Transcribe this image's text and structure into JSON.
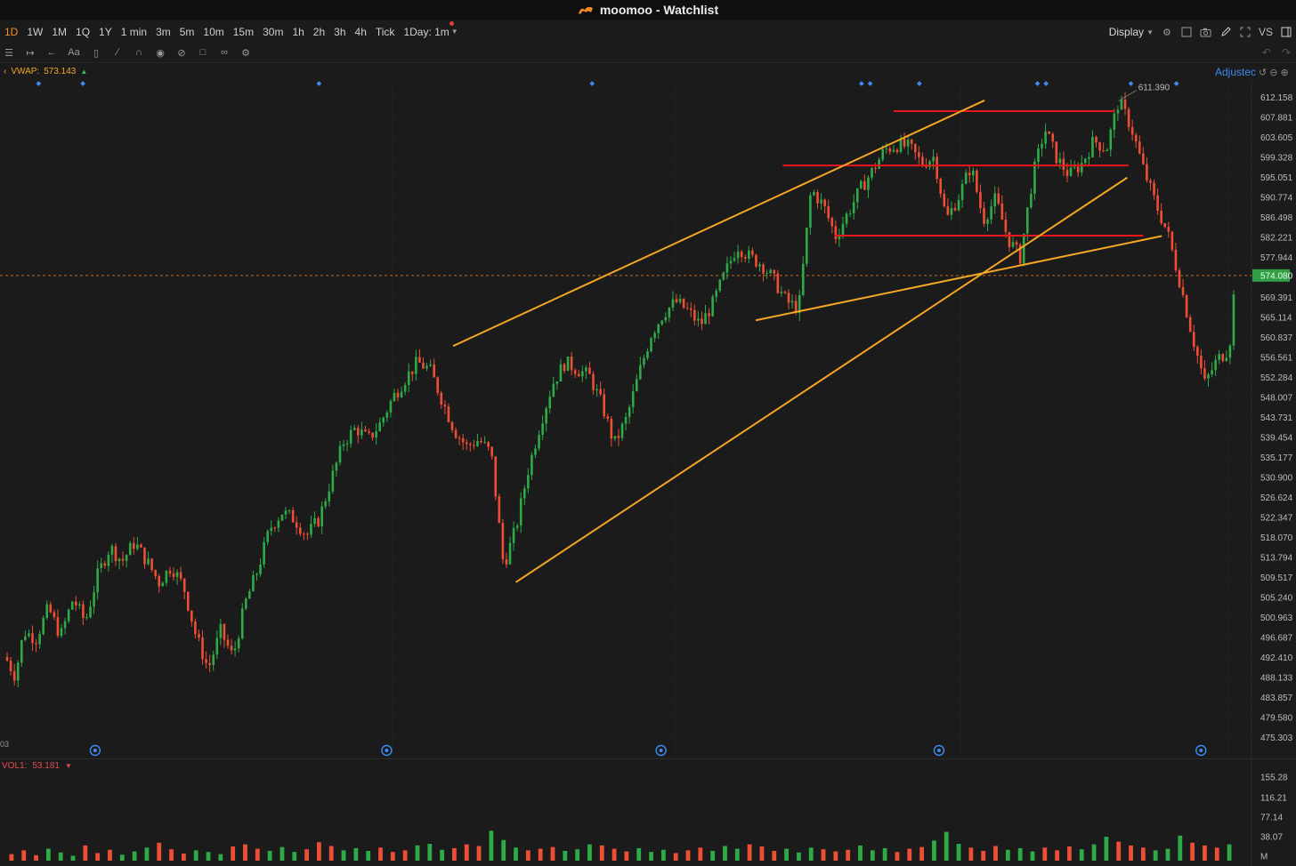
{
  "app": {
    "title": "moomoo - Watchlist"
  },
  "toolbar": {
    "timeframes": [
      "1D",
      "1W",
      "1M",
      "1Q",
      "1Y",
      "1 min",
      "3m",
      "5m",
      "10m",
      "15m",
      "30m",
      "1h",
      "2h",
      "3h",
      "4h",
      "Tick"
    ],
    "active_timeframe": "1D",
    "day_selector": "1Day: 1m",
    "display_label": "Display",
    "vs_label": "VS"
  },
  "indicators": {
    "vwap_label": "VWAP:",
    "vwap_value": "573.143",
    "vol_label": "VOL1:",
    "vol_value": "53.181",
    "adjusted_label": "Adjustec",
    "date_stub": "03",
    "tool_text": "Aa"
  },
  "icons": {
    "title_logo": "moomoo-logo-icon",
    "camera": "camera-icon",
    "pencil": "pencil-icon",
    "expand": "expand-icon",
    "settings": "gear-icon"
  },
  "colors": {
    "up": "#2eaa47",
    "down": "#ee4e34",
    "trendline": "#f5a623",
    "level": "#e8161d",
    "price_highlight": "#2f9e44",
    "accent": "#f28c28",
    "background": "#1b1b1c"
  },
  "chart_data": {
    "type": "candlestick",
    "price_axis_ticks": [
      "612.158",
      "607.881",
      "603.605",
      "599.328",
      "595.051",
      "590.774",
      "586.498",
      "582.221",
      "577.944",
      "569.391",
      "565.114",
      "560.837",
      "556.561",
      "552.284",
      "548.007",
      "543.731",
      "539.454",
      "535.177",
      "530.900",
      "526.624",
      "522.347",
      "518.070",
      "513.794",
      "509.517",
      "505.240",
      "500.963",
      "496.687",
      "492.410",
      "488.133",
      "483.857",
      "479.580",
      "475.303"
    ],
    "ylim": [
      475.303,
      612.158
    ],
    "current_price": "574.080",
    "current_price_value": 574.08,
    "high_annotation": "611.390",
    "high_value": 611.39,
    "volume_axis_ticks": [
      "155.28",
      "116.21",
      "77.14",
      "38.07",
      "M"
    ],
    "volume_ylim": [
      0,
      155.28
    ],
    "price_path": [
      {
        "x": 0.0,
        "y": 492.5
      },
      {
        "x": 0.8,
        "y": 488.5
      },
      {
        "x": 1.5,
        "y": 498.0
      },
      {
        "x": 2.5,
        "y": 496.5
      },
      {
        "x": 3.5,
        "y": 503.0
      },
      {
        "x": 4.5,
        "y": 497.0
      },
      {
        "x": 5.5,
        "y": 505.0
      },
      {
        "x": 6.5,
        "y": 500.0
      },
      {
        "x": 7.5,
        "y": 510.0
      },
      {
        "x": 8.5,
        "y": 516.0
      },
      {
        "x": 9.5,
        "y": 513.0
      },
      {
        "x": 10.5,
        "y": 517.0
      },
      {
        "x": 11.5,
        "y": 513.0
      },
      {
        "x": 12.5,
        "y": 508.5
      },
      {
        "x": 13.5,
        "y": 512.0
      },
      {
        "x": 14.5,
        "y": 507.5
      },
      {
        "x": 15.5,
        "y": 497.0
      },
      {
        "x": 16.5,
        "y": 490.0
      },
      {
        "x": 17.5,
        "y": 498.0
      },
      {
        "x": 18.5,
        "y": 492.5
      },
      {
        "x": 19.5,
        "y": 504.0
      },
      {
        "x": 20.5,
        "y": 511.0
      },
      {
        "x": 21.5,
        "y": 520.0
      },
      {
        "x": 22.5,
        "y": 523.5
      },
      {
        "x": 23.5,
        "y": 522.0
      },
      {
        "x": 24.5,
        "y": 518.5
      },
      {
        "x": 25.5,
        "y": 522.0
      },
      {
        "x": 26.5,
        "y": 530.5
      },
      {
        "x": 27.5,
        "y": 538.5
      },
      {
        "x": 28.5,
        "y": 541.5
      },
      {
        "x": 29.5,
        "y": 539.0
      },
      {
        "x": 30.5,
        "y": 542.5
      },
      {
        "x": 31.5,
        "y": 548.0
      },
      {
        "x": 32.5,
        "y": 552.0
      },
      {
        "x": 33.5,
        "y": 555.5
      },
      {
        "x": 34.5,
        "y": 554.0
      },
      {
        "x": 35.5,
        "y": 547.5
      },
      {
        "x": 36.5,
        "y": 541.0
      },
      {
        "x": 37.5,
        "y": 537.5
      },
      {
        "x": 38.5,
        "y": 539.0
      },
      {
        "x": 39.5,
        "y": 536.0
      },
      {
        "x": 40.5,
        "y": 512.0
      },
      {
        "x": 41.5,
        "y": 520.0
      },
      {
        "x": 42.5,
        "y": 532.5
      },
      {
        "x": 43.5,
        "y": 542.5
      },
      {
        "x": 44.5,
        "y": 551.0
      },
      {
        "x": 45.5,
        "y": 555.5
      },
      {
        "x": 46.5,
        "y": 554.0
      },
      {
        "x": 47.5,
        "y": 552.5
      },
      {
        "x": 48.5,
        "y": 546.5
      },
      {
        "x": 49.5,
        "y": 538.0
      },
      {
        "x": 50.5,
        "y": 543.5
      },
      {
        "x": 51.5,
        "y": 553.0
      },
      {
        "x": 52.5,
        "y": 561.5
      },
      {
        "x": 53.5,
        "y": 566.0
      },
      {
        "x": 54.5,
        "y": 568.5
      },
      {
        "x": 55.5,
        "y": 566.5
      },
      {
        "x": 56.5,
        "y": 563.5
      },
      {
        "x": 57.5,
        "y": 568.0
      },
      {
        "x": 58.5,
        "y": 574.5
      },
      {
        "x": 59.5,
        "y": 580.5
      },
      {
        "x": 60.5,
        "y": 578.0
      },
      {
        "x": 61.5,
        "y": 576.5
      },
      {
        "x": 62.5,
        "y": 573.0
      },
      {
        "x": 63.5,
        "y": 568.5
      },
      {
        "x": 64.5,
        "y": 567.0
      },
      {
        "x": 65.5,
        "y": 592.5
      },
      {
        "x": 66.5,
        "y": 589.0
      },
      {
        "x": 67.5,
        "y": 582.5
      },
      {
        "x": 68.5,
        "y": 587.5
      },
      {
        "x": 69.5,
        "y": 592.5
      },
      {
        "x": 70.5,
        "y": 596.5
      },
      {
        "x": 71.5,
        "y": 601.0
      },
      {
        "x": 72.5,
        "y": 602.0
      },
      {
        "x": 73.5,
        "y": 601.5
      },
      {
        "x": 74.5,
        "y": 598.0
      },
      {
        "x": 75.5,
        "y": 599.5
      },
      {
        "x": 76.5,
        "y": 586.0
      },
      {
        "x": 77.5,
        "y": 591.0
      },
      {
        "x": 78.5,
        "y": 597.5
      },
      {
        "x": 79.5,
        "y": 586.0
      },
      {
        "x": 80.5,
        "y": 590.5
      },
      {
        "x": 81.5,
        "y": 582.0
      },
      {
        "x": 82.5,
        "y": 578.0
      },
      {
        "x": 83.5,
        "y": 595.0
      },
      {
        "x": 84.5,
        "y": 605.5
      },
      {
        "x": 85.5,
        "y": 599.0
      },
      {
        "x": 86.5,
        "y": 595.5
      },
      {
        "x": 87.5,
        "y": 598.0
      },
      {
        "x": 88.5,
        "y": 603.0
      },
      {
        "x": 89.5,
        "y": 601.0
      },
      {
        "x": 90.5,
        "y": 611.4
      },
      {
        "x": 91.5,
        "y": 606.0
      },
      {
        "x": 92.5,
        "y": 597.0
      },
      {
        "x": 93.5,
        "y": 589.5
      },
      {
        "x": 94.5,
        "y": 583.0
      },
      {
        "x": 95.5,
        "y": 572.5
      },
      {
        "x": 96.5,
        "y": 561.0
      },
      {
        "x": 97.5,
        "y": 551.0
      },
      {
        "x": 98.5,
        "y": 556.0
      },
      {
        "x": 99.5,
        "y": 558.5
      },
      {
        "x": 100.0,
        "y": 574.1
      }
    ],
    "volume": [
      12,
      19,
      10,
      22,
      15,
      9,
      28,
      14,
      20,
      11,
      17,
      24,
      33,
      21,
      13,
      19,
      16,
      12,
      26,
      30,
      22,
      18,
      25,
      16,
      21,
      34,
      27,
      19,
      23,
      18,
      24,
      16,
      19,
      28,
      31,
      20,
      23,
      30,
      27,
      55,
      38,
      24,
      19,
      22,
      25,
      18,
      21,
      30,
      28,
      22,
      17,
      23,
      16,
      20,
      14,
      19,
      24,
      18,
      27,
      22,
      30,
      26,
      18,
      22,
      15,
      24,
      21,
      17,
      20,
      28,
      19,
      23,
      16,
      22,
      25,
      37,
      53,
      31,
      24,
      18,
      27,
      20,
      23,
      17,
      24,
      19,
      26,
      21,
      30,
      44,
      35,
      28,
      24,
      19,
      22,
      46,
      33,
      28,
      24,
      30
    ],
    "trendlines": [
      {
        "type": "rising_channel_upper",
        "from": {
          "x": 36.4,
          "y": 559.0
        },
        "to": {
          "x": 79.6,
          "y": 611.5
        }
      },
      {
        "type": "rising_channel_lower",
        "from": {
          "x": 41.5,
          "y": 508.5
        },
        "to": {
          "x": 91.2,
          "y": 595.0
        }
      },
      {
        "type": "support",
        "from": {
          "x": 61.0,
          "y": 564.5
        },
        "to": {
          "x": 94.0,
          "y": 582.5
        }
      }
    ],
    "levels": [
      {
        "value": 609.2,
        "x_from": 72.2,
        "x_to": 90.2
      },
      {
        "value": 597.6,
        "x_from": 63.2,
        "x_to": 91.3
      },
      {
        "value": 582.6,
        "x_from": 67.4,
        "x_to": 92.5
      }
    ],
    "markers_top": [
      2.7,
      6.3,
      25.5,
      47.7,
      69.6,
      70.3,
      74.3,
      83.9,
      84.6,
      91.5,
      95.2
    ],
    "markers_bottom": [
      7.3,
      31.0,
      53.3,
      75.9,
      97.2
    ]
  }
}
